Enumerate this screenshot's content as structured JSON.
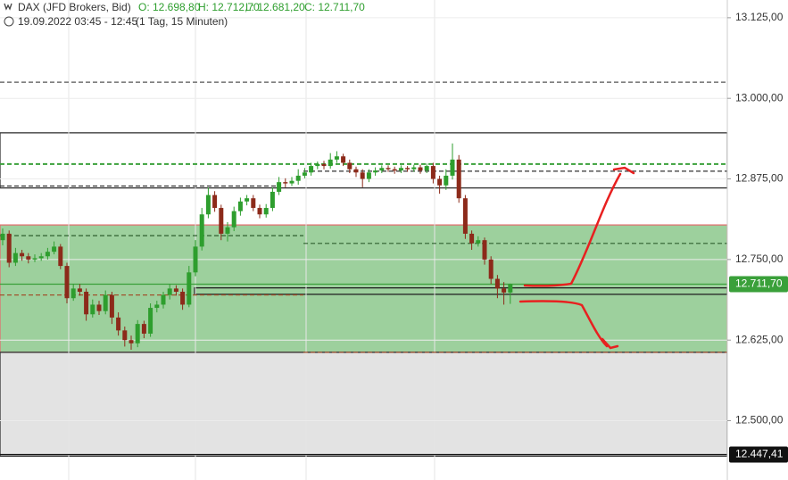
{
  "chart_data": {
    "type": "candlestick",
    "title": "DAX (JFD Brokers, Bid)",
    "quote": [
      "O: 12.698,80",
      "H: 12.712,70",
      "L: 12.681,20",
      "C: 12.711,70"
    ],
    "subtitle": "19.09.2022 03:45 - 12:45",
    "interval": "(1 Tag, 15 Minuten)",
    "up_color": "#2e9e2e",
    "down_color": "#8c2a1a",
    "open": [
      12780,
      12790,
      12745,
      12760,
      12755,
      12750,
      12752,
      12755,
      12762,
      12770,
      12740,
      12690,
      12705,
      12700,
      12665,
      12680,
      12670,
      12695,
      12660,
      12640,
      12625,
      12620,
      12650,
      12635,
      12675,
      12680,
      12695,
      12705,
      12700,
      12680,
      12730,
      12770,
      12820,
      12850,
      12830,
      12790,
      12800,
      12825,
      12840,
      12845,
      12830,
      12820,
      12830,
      12855,
      12870,
      12868,
      12872,
      12880,
      12885,
      12895,
      12898,
      12895,
      12905,
      12910,
      12900,
      12890,
      12885,
      12875,
      12885,
      12888,
      12892,
      12890,
      12888,
      12892,
      12890,
      12893,
      12888,
      12895,
      12875,
      12865,
      12880,
      12905,
      12845,
      12790,
      12775,
      12780,
      12750,
      12720,
      12705,
      12698.8
    ],
    "high": [
      12798,
      12795,
      12768,
      12765,
      12760,
      12758,
      12760,
      12768,
      12778,
      12774,
      12745,
      12712,
      12712,
      12705,
      12688,
      12686,
      12702,
      12700,
      12668,
      12646,
      12632,
      12656,
      12655,
      12682,
      12686,
      12700,
      12712,
      12710,
      12705,
      12740,
      12780,
      12830,
      12862,
      12856,
      12835,
      12808,
      12832,
      12846,
      12850,
      12850,
      12835,
      12836,
      12862,
      12878,
      12876,
      12878,
      12890,
      12892,
      12900,
      12902,
      12903,
      12915,
      12918,
      12914,
      12905,
      12894,
      12890,
      12890,
      12893,
      12896,
      12896,
      12894,
      12896,
      12895,
      12897,
      12897,
      12899,
      12900,
      12880,
      12890,
      12930,
      12912,
      12850,
      12795,
      12786,
      12784,
      12755,
      12726,
      12715,
      12712.7
    ],
    "low": [
      12772,
      12738,
      12740,
      12748,
      12744,
      12746,
      12748,
      12750,
      12758,
      12735,
      12682,
      12686,
      12694,
      12655,
      12660,
      12664,
      12665,
      12650,
      12632,
      12615,
      12610,
      12614,
      12628,
      12630,
      12668,
      12674,
      12688,
      12694,
      12672,
      12676,
      12724,
      12764,
      12814,
      12824,
      12780,
      12778,
      12794,
      12818,
      12834,
      12825,
      12814,
      12815,
      12825,
      12850,
      12862,
      12864,
      12866,
      12876,
      12880,
      12890,
      12890,
      12891,
      12900,
      12895,
      12884,
      12878,
      12862,
      12870,
      12880,
      12884,
      12886,
      12883,
      12884,
      12886,
      12886,
      12883,
      12884,
      12868,
      12852,
      12858,
      12874,
      12838,
      12782,
      12765,
      12770,
      12742,
      12712,
      12690,
      12680,
      12681.2
    ],
    "close": [
      12790,
      12745,
      12760,
      12755,
      12750,
      12752,
      12755,
      12762,
      12770,
      12740,
      12690,
      12705,
      12700,
      12665,
      12680,
      12670,
      12695,
      12660,
      12640,
      12625,
      12620,
      12650,
      12635,
      12675,
      12680,
      12695,
      12705,
      12700,
      12680,
      12730,
      12770,
      12820,
      12850,
      12830,
      12790,
      12800,
      12825,
      12840,
      12845,
      12830,
      12820,
      12830,
      12855,
      12870,
      12868,
      12872,
      12880,
      12885,
      12895,
      12898,
      12895,
      12905,
      12910,
      12900,
      12890,
      12885,
      12875,
      12885,
      12888,
      12892,
      12890,
      12888,
      12892,
      12890,
      12893,
      12888,
      12895,
      12875,
      12865,
      12880,
      12905,
      12845,
      12790,
      12775,
      12780,
      12750,
      12720,
      12705,
      12698.8,
      12711.7
    ],
    "ylim": [
      12408,
      13152.5
    ],
    "yticks": [
      {
        "value": 13125,
        "label": "13.125,00"
      },
      {
        "value": 13000,
        "label": "13.000,00"
      },
      {
        "value": 12875,
        "label": "12.875,00"
      },
      {
        "value": 12750,
        "label": "12.750,00"
      },
      {
        "value": 12625,
        "label": "12.625,00"
      },
      {
        "value": 12500,
        "label": "12.500,00"
      }
    ],
    "grid": true,
    "zones": [
      {
        "range": [
          12606,
          12803.6
        ],
        "color": "#9dd09d",
        "edge": "#e07070"
      },
      {
        "range": [
          12445,
          12606
        ],
        "color": "#e3e3e3",
        "edge": "#333333"
      },
      {
        "range": [
          12861,
          12946.5
        ],
        "color": "none",
        "edge": "#333333"
      },
      {
        "range": [
          12696,
          12706
        ],
        "color": "none",
        "edge": "#222222"
      }
    ],
    "levels": [
      {
        "value": 13025,
        "color": "#555555"
      },
      {
        "value": 12898,
        "color": "#3aa03a"
      },
      {
        "value": 12887,
        "color": "#333333"
      },
      {
        "value": 12864,
        "color": "#333333"
      },
      {
        "value": 12787,
        "color": "#2f5f2f"
      },
      {
        "value": 12775,
        "color": "#2f5f2f"
      },
      {
        "value": 12695,
        "color": "#a0522d"
      },
      {
        "value": 12606,
        "color": "#a0522d"
      }
    ],
    "price_labels": [
      {
        "value": 12711.7,
        "label": "12.711,70",
        "color": "#3aa03a"
      },
      {
        "value": 12447.41,
        "label": "12.447,41",
        "color": "#111111"
      }
    ]
  }
}
